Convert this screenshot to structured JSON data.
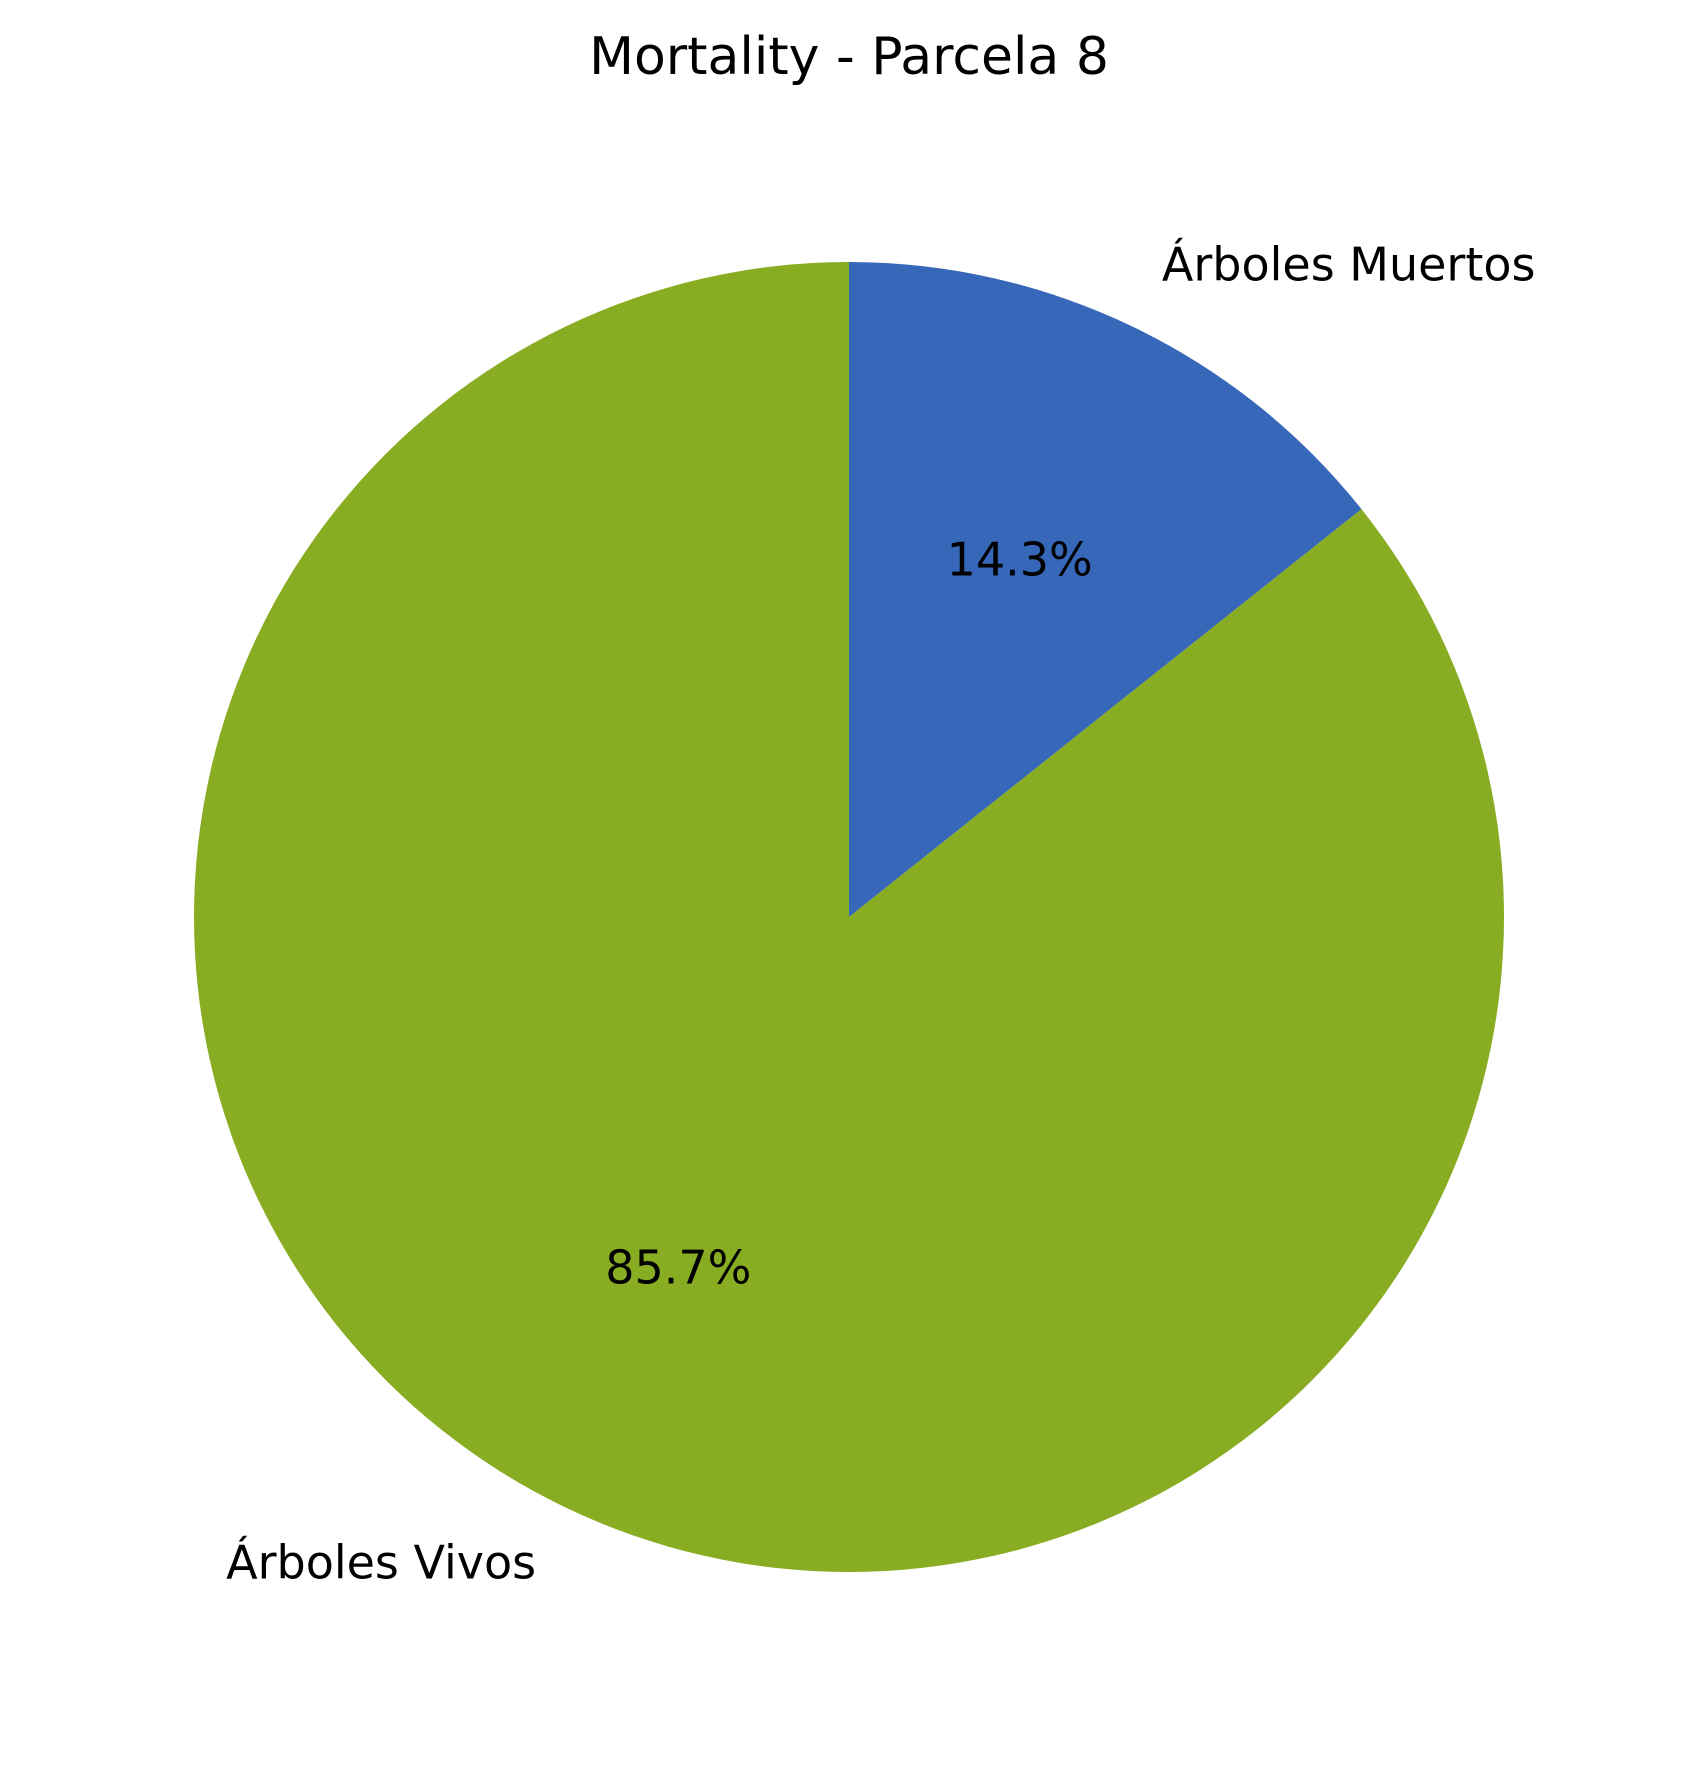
{
  "chart_data": {
    "type": "pie",
    "title": "Mortality - Parcela 8",
    "start_angle_deg": 90,
    "direction": "clockwise",
    "slices": [
      {
        "label": "Árboles Muertos",
        "value": 14.3,
        "value_label": "14.3%",
        "color": "#3767b8"
      },
      {
        "label": "Árboles Vivos",
        "value": 85.7,
        "value_label": "85.7%",
        "color": "#88ac22"
      }
    ],
    "legend": "none"
  }
}
